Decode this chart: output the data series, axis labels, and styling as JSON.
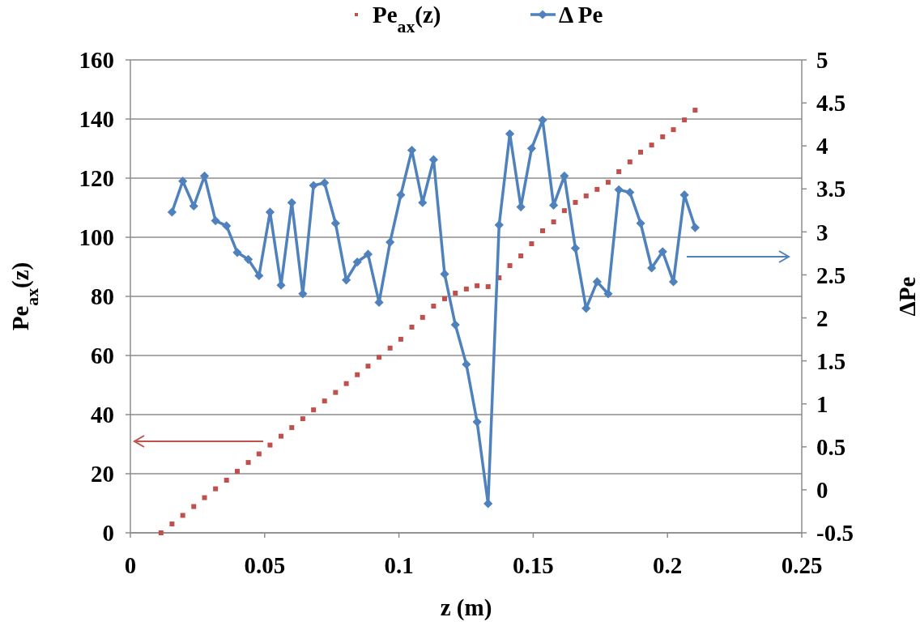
{
  "chart_data": {
    "type": "scatter",
    "xlabel": "z (m)",
    "ylabel": "Pe$_{ax}$(z)",
    "y2label": "ΔPe",
    "xlim": [
      0,
      0.25
    ],
    "xticks": [
      0,
      0.05,
      0.1,
      0.15,
      0.2,
      0.25
    ],
    "ylim": [
      0,
      160
    ],
    "yticks": [
      0,
      20,
      40,
      60,
      80,
      100,
      120,
      140,
      160
    ],
    "y2lim": [
      -0.5,
      5
    ],
    "y2ticks": [
      -0.5,
      0,
      0.5,
      1,
      1.5,
      2,
      2.5,
      3,
      3.5,
      4,
      4.5,
      5
    ],
    "grid": "y",
    "legend": "top",
    "series": [
      {
        "name": "Pe$_{ax}$(z)",
        "marker": "square",
        "color": "#c0504d",
        "x": [
          0.0114,
          0.0155,
          0.0195,
          0.0236,
          0.0276,
          0.0317,
          0.0358,
          0.0398,
          0.0439,
          0.0479,
          0.052,
          0.0561,
          0.0601,
          0.0642,
          0.0682,
          0.0723,
          0.0764,
          0.0804,
          0.0845,
          0.0885,
          0.0926,
          0.0967,
          0.1007,
          0.1048,
          0.1088,
          0.1129,
          0.117,
          0.121,
          0.1251,
          0.1291,
          0.1332,
          0.1373,
          0.1413,
          0.1454,
          0.1494,
          0.1535,
          0.1576,
          0.1616,
          0.1657,
          0.1697,
          0.1738,
          0.1779,
          0.1819,
          0.186,
          0.19,
          0.1941,
          0.1982,
          0.2022,
          0.2063,
          0.2103
        ],
        "values": [
          0,
          3.0,
          5.9,
          8.9,
          11.9,
          14.9,
          17.8,
          20.8,
          23.8,
          26.7,
          29.7,
          32.7,
          35.6,
          38.6,
          41.6,
          44.6,
          47.5,
          50.5,
          53.5,
          56.4,
          59.4,
          62.5,
          65.5,
          69.6,
          72.9,
          76.7,
          79.2,
          81.1,
          82.5,
          83.6,
          83.3,
          86.3,
          90.4,
          93.7,
          97.8,
          102.2,
          105.2,
          109.0,
          111.8,
          114.0,
          116.2,
          118.6,
          122.2,
          125.5,
          128.8,
          131.2,
          134.0,
          136.4,
          139.7,
          143.0
        ]
      },
      {
        "name": "Δ Pe",
        "type": "line",
        "marker": "diamond",
        "line_style": "solid",
        "axis": "y2",
        "color": "#4f81bd",
        "x": [
          0.0155,
          0.0195,
          0.0236,
          0.0276,
          0.0317,
          0.0358,
          0.0398,
          0.0439,
          0.0479,
          0.052,
          0.0561,
          0.0601,
          0.0642,
          0.0682,
          0.0723,
          0.0764,
          0.0804,
          0.0845,
          0.0885,
          0.0926,
          0.0967,
          0.1007,
          0.1048,
          0.1088,
          0.1129,
          0.117,
          0.121,
          0.1251,
          0.1291,
          0.1332,
          0.1373,
          0.1413,
          0.1454,
          0.1494,
          0.1535,
          0.1576,
          0.1616,
          0.1657,
          0.1697,
          0.1738,
          0.1779,
          0.1819,
          0.186,
          0.19,
          0.1941,
          0.1982,
          0.2022,
          0.2063,
          0.2103
        ],
        "values": [
          3.23,
          3.59,
          3.3,
          3.65,
          3.13,
          3.07,
          2.76,
          2.68,
          2.49,
          3.23,
          2.38,
          3.34,
          2.28,
          3.54,
          3.57,
          3.1,
          2.44,
          2.65,
          2.74,
          2.18,
          2.88,
          3.43,
          3.95,
          3.34,
          3.84,
          2.51,
          1.92,
          1.46,
          0.79,
          -0.16,
          3.08,
          4.14,
          3.29,
          3.97,
          4.3,
          3.31,
          3.65,
          2.81,
          2.11,
          2.42,
          2.28,
          3.49,
          3.46,
          3.1,
          2.58,
          2.77,
          2.42,
          3.43,
          3.05
        ]
      }
    ]
  }
}
